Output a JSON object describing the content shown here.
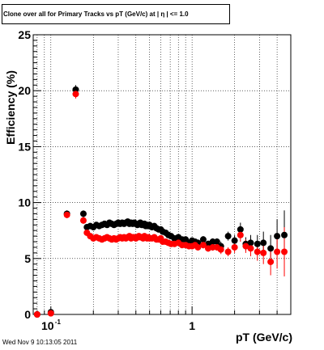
{
  "title": "Clone  over all for Primary Tracks vs pT (GeV/c) at |  η | <= 1.0",
  "footer": "Wed Nov  9 10:13:05 2011",
  "chart_data": {
    "type": "scatter",
    "title": "Clone  over all for Primary Tracks vs pT (GeV/c) at |  η | <= 1.0",
    "xlabel": "pT (GeV/c)",
    "ylabel": "Efficiency (%)",
    "xscale": "log",
    "xlim": [
      0.075,
      5.0
    ],
    "ylim": [
      0,
      25
    ],
    "grid": true,
    "x_ticks": [
      {
        "value": 0.1,
        "label": "10",
        "exp": "-1"
      },
      {
        "value": 1,
        "label": "1",
        "exp": ""
      }
    ],
    "y_ticks": [
      {
        "value": 0,
        "label": "0"
      },
      {
        "value": 5,
        "label": "5"
      },
      {
        "value": 10,
        "label": "10"
      },
      {
        "value": 15,
        "label": "15"
      },
      {
        "value": 20,
        "label": "20"
      },
      {
        "value": 25,
        "label": "25"
      }
    ],
    "series": [
      {
        "color": "#000000",
        "x": [
          0.08,
          0.1,
          0.13,
          0.15,
          0.17,
          0.18,
          0.19,
          0.2,
          0.21,
          0.22,
          0.23,
          0.24,
          0.25,
          0.26,
          0.27,
          0.28,
          0.29,
          0.3,
          0.31,
          0.32,
          0.33,
          0.34,
          0.35,
          0.36,
          0.37,
          0.38,
          0.39,
          0.4,
          0.41,
          0.42,
          0.43,
          0.44,
          0.45,
          0.46,
          0.47,
          0.48,
          0.49,
          0.5,
          0.52,
          0.54,
          0.56,
          0.58,
          0.6,
          0.62,
          0.65,
          0.68,
          0.71,
          0.75,
          0.8,
          0.85,
          0.9,
          0.95,
          1.0,
          1.05,
          1.1,
          1.2,
          1.3,
          1.4,
          1.5,
          1.6,
          1.8,
          2.0,
          2.2,
          2.4,
          2.6,
          2.9,
          3.2,
          3.6,
          4.0,
          4.5
        ],
        "y": [
          0.0,
          0.2,
          9.0,
          20.1,
          9.0,
          7.8,
          7.9,
          7.8,
          8.0,
          7.9,
          8.0,
          8.1,
          8.0,
          8.2,
          8.1,
          8.0,
          8.1,
          8.2,
          8.1,
          8.2,
          8.1,
          8.2,
          8.3,
          8.1,
          8.2,
          8.1,
          8.2,
          8.1,
          8.0,
          8.1,
          8.2,
          8.0,
          8.0,
          8.1,
          7.9,
          8.0,
          7.9,
          8.0,
          7.8,
          7.9,
          7.7,
          7.6,
          7.6,
          7.4,
          7.3,
          7.1,
          7.0,
          6.8,
          6.9,
          6.7,
          6.7,
          6.4,
          6.6,
          6.5,
          6.4,
          6.7,
          6.3,
          6.5,
          6.5,
          6.1,
          7.0,
          6.6,
          7.6,
          6.3,
          6.4,
          6.3,
          6.4,
          5.9,
          7.0,
          7.1
        ],
        "err": [
          0.1,
          0.1,
          0.3,
          0.4,
          0.3,
          0.2,
          0.2,
          0.2,
          0.2,
          0.2,
          0.2,
          0.2,
          0.2,
          0.2,
          0.2,
          0.2,
          0.2,
          0.2,
          0.2,
          0.2,
          0.2,
          0.2,
          0.2,
          0.2,
          0.2,
          0.2,
          0.2,
          0.2,
          0.2,
          0.2,
          0.2,
          0.2,
          0.2,
          0.2,
          0.2,
          0.2,
          0.2,
          0.2,
          0.2,
          0.2,
          0.2,
          0.2,
          0.2,
          0.2,
          0.2,
          0.2,
          0.2,
          0.2,
          0.2,
          0.2,
          0.2,
          0.2,
          0.2,
          0.2,
          0.2,
          0.3,
          0.3,
          0.3,
          0.3,
          0.4,
          0.4,
          0.5,
          0.6,
          0.6,
          0.7,
          0.8,
          1.0,
          1.2,
          1.5,
          2.2
        ]
      },
      {
        "color": "#ff0000",
        "x": [
          0.08,
          0.1,
          0.13,
          0.15,
          0.17,
          0.18,
          0.19,
          0.2,
          0.21,
          0.22,
          0.23,
          0.24,
          0.25,
          0.26,
          0.27,
          0.28,
          0.29,
          0.3,
          0.31,
          0.32,
          0.33,
          0.34,
          0.35,
          0.36,
          0.37,
          0.38,
          0.39,
          0.4,
          0.41,
          0.42,
          0.43,
          0.44,
          0.45,
          0.46,
          0.47,
          0.48,
          0.49,
          0.5,
          0.52,
          0.54,
          0.56,
          0.58,
          0.6,
          0.62,
          0.65,
          0.68,
          0.71,
          0.75,
          0.8,
          0.85,
          0.9,
          0.95,
          1.0,
          1.05,
          1.1,
          1.2,
          1.3,
          1.4,
          1.5,
          1.6,
          1.8,
          2.0,
          2.2,
          2.4,
          2.6,
          2.9,
          3.2,
          3.6,
          4.0,
          4.5
        ],
        "y": [
          0.0,
          0.1,
          8.9,
          19.7,
          8.4,
          7.3,
          7.0,
          6.8,
          6.9,
          6.8,
          6.7,
          6.8,
          6.9,
          6.8,
          6.7,
          6.8,
          6.7,
          6.8,
          6.9,
          6.8,
          6.9,
          6.8,
          6.9,
          7.0,
          6.8,
          6.9,
          6.9,
          6.8,
          6.9,
          7.0,
          6.9,
          6.9,
          6.8,
          7.0,
          6.9,
          6.8,
          6.9,
          6.8,
          6.8,
          6.9,
          6.7,
          6.7,
          6.8,
          6.5,
          6.5,
          6.4,
          6.3,
          6.3,
          6.4,
          6.2,
          6.2,
          6.1,
          6.1,
          6.2,
          6.0,
          6.2,
          5.9,
          6.0,
          6.0,
          5.8,
          5.6,
          6.0,
          7.1,
          6.1,
          5.9,
          5.6,
          5.5,
          4.7,
          5.6,
          5.6
        ],
        "err": [
          0.1,
          0.1,
          0.3,
          0.4,
          0.3,
          0.2,
          0.2,
          0.2,
          0.2,
          0.2,
          0.2,
          0.2,
          0.2,
          0.2,
          0.2,
          0.2,
          0.2,
          0.2,
          0.2,
          0.2,
          0.2,
          0.2,
          0.2,
          0.2,
          0.2,
          0.2,
          0.2,
          0.2,
          0.2,
          0.2,
          0.2,
          0.2,
          0.2,
          0.2,
          0.2,
          0.2,
          0.2,
          0.2,
          0.2,
          0.2,
          0.2,
          0.2,
          0.2,
          0.2,
          0.2,
          0.2,
          0.2,
          0.2,
          0.2,
          0.2,
          0.2,
          0.2,
          0.2,
          0.2,
          0.2,
          0.3,
          0.3,
          0.3,
          0.3,
          0.4,
          0.4,
          0.5,
          0.6,
          0.6,
          0.7,
          0.8,
          1.0,
          1.2,
          1.5,
          2.2
        ]
      }
    ]
  }
}
